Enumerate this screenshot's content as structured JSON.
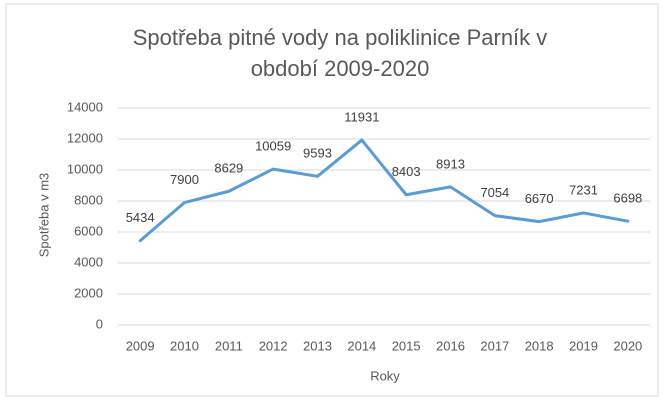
{
  "chart_data": {
    "type": "line",
    "title": "Spotřeba pitné vody na poliklinice Parník v období 2009-2020",
    "x_label": "Roky",
    "y_label": "Spotřeba v m3",
    "categories": [
      "2009",
      "2010",
      "2011",
      "2012",
      "2013",
      "2014",
      "2015",
      "2016",
      "2017",
      "2018",
      "2019",
      "2020"
    ],
    "values": [
      5434,
      7900,
      8629,
      10059,
      9593,
      11931,
      8403,
      8913,
      7054,
      6670,
      7231,
      6698
    ],
    "color": "#5b9bd5",
    "ylim": [
      0,
      14000
    ],
    "yticks": [
      0,
      2000,
      4000,
      6000,
      8000,
      10000,
      12000,
      14000
    ],
    "grid": true
  }
}
